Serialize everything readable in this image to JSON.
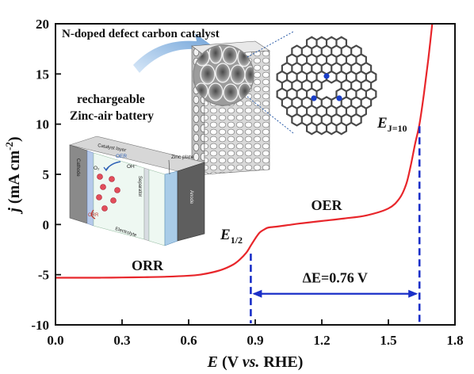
{
  "chart_data": {
    "type": "line",
    "title": "",
    "xlabel": "E (V vs. RHE)",
    "ylabel": "j (mA cm⁻²)",
    "xlim": [
      0.0,
      1.8
    ],
    "ylim": [
      -10,
      20
    ],
    "xticks": [
      0.0,
      0.3,
      0.6,
      0.9,
      1.2,
      1.5,
      1.8
    ],
    "xtick_labels": [
      "0.0",
      "0.3",
      "0.6",
      "0.9",
      "1.2",
      "1.5",
      "1.8"
    ],
    "yticks": [
      -10,
      -5,
      0,
      5,
      10,
      15,
      20
    ],
    "ytick_labels": [
      "-10",
      "-5",
      "0",
      "5",
      "10",
      "15",
      "20"
    ],
    "grid": false,
    "series": [
      {
        "color": "#e8262b",
        "x": [
          0.0,
          0.1,
          0.2,
          0.3,
          0.4,
          0.5,
          0.6,
          0.65,
          0.7,
          0.75,
          0.8,
          0.83,
          0.86,
          0.88,
          0.9,
          0.92,
          0.94,
          0.96,
          1.0,
          1.05,
          1.1,
          1.2,
          1.3,
          1.4,
          1.5,
          1.55,
          1.58,
          1.6,
          1.62,
          1.64,
          1.66,
          1.68,
          1.7
        ],
        "y": [
          -5.3,
          -5.3,
          -5.3,
          -5.28,
          -5.25,
          -5.2,
          -5.1,
          -5.0,
          -4.8,
          -4.5,
          -4.0,
          -3.5,
          -2.8,
          -2.1,
          -1.4,
          -0.8,
          -0.5,
          -0.3,
          -0.2,
          -0.05,
          0.1,
          0.35,
          0.6,
          0.9,
          1.6,
          2.6,
          4.0,
          5.8,
          8.0,
          10.0,
          13.0,
          16.5,
          20.5
        ]
      }
    ],
    "annotations": {
      "orr": "ORR",
      "oer": "OER",
      "e_half": "E",
      "e_half_sub": "1/2",
      "e_j10": "E",
      "e_j10_sub": "J=10",
      "delta_e": "ΔE=0.76 V",
      "e_half_x": 0.88,
      "e_j10_x": 1.64
    },
    "inset_text": {
      "catalyst": "N-doped defect carbon catalyst",
      "battery_line1": "rechargeable",
      "battery_line2": "Zinc-air battery",
      "catalyst_layer": "Catalyst layer",
      "cathode": "Cathode",
      "separator": "Separator",
      "electrolyte": "Electrolyte",
      "anode": "Anode",
      "zinc_plate": "Zinc plate",
      "oer": "OER",
      "orr": "ORR",
      "o2": "O₂",
      "oh": "OH⁻"
    }
  }
}
